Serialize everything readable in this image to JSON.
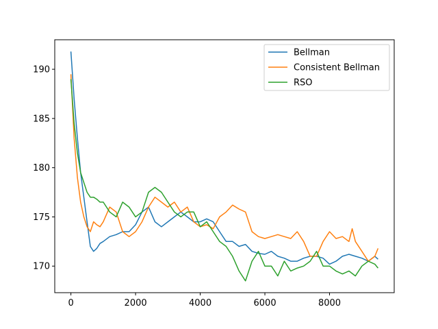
{
  "chart_data": {
    "type": "line",
    "title": "",
    "xlabel": "",
    "ylabel": "",
    "xlim": [
      -500,
      10000
    ],
    "ylim": [
      167.3,
      193.0
    ],
    "x_ticks": [
      {
        "value": 0,
        "label": "0"
      },
      {
        "value": 2000,
        "label": "2000"
      },
      {
        "value": 4000,
        "label": "4000"
      },
      {
        "value": 6000,
        "label": "6000"
      },
      {
        "value": 8000,
        "label": "8000"
      }
    ],
    "y_ticks": [
      {
        "value": 170,
        "label": "170"
      },
      {
        "value": 175,
        "label": "175"
      },
      {
        "value": 180,
        "label": "180"
      },
      {
        "value": 185,
        "label": "185"
      },
      {
        "value": 190,
        "label": "190"
      }
    ],
    "legend_position": "top-right",
    "series": [
      {
        "name": "Bellman",
        "color": "#1f77b4",
        "x": [
          0,
          100,
          200,
          300,
          400,
          500,
          600,
          700,
          800,
          900,
          1000,
          1200,
          1400,
          1600,
          1800,
          2000,
          2200,
          2400,
          2600,
          2800,
          3000,
          3200,
          3400,
          3600,
          3800,
          4000,
          4200,
          4400,
          4600,
          4800,
          5000,
          5200,
          5400,
          5600,
          5800,
          6000,
          6200,
          6400,
          6600,
          6800,
          7000,
          7200,
          7400,
          7600,
          7800,
          8000,
          8200,
          8400,
          8600,
          8800,
          9000,
          9200,
          9400,
          9500
        ],
        "y": [
          191.8,
          187.0,
          183.0,
          179.5,
          177.0,
          174.5,
          172.0,
          171.5,
          171.8,
          172.3,
          172.5,
          173.0,
          173.2,
          173.5,
          173.5,
          174.2,
          175.5,
          176.0,
          174.5,
          174.0,
          174.5,
          175.0,
          175.5,
          175.0,
          174.5,
          174.5,
          174.8,
          174.5,
          173.5,
          172.5,
          172.5,
          172.0,
          172.2,
          171.5,
          171.3,
          171.2,
          171.5,
          171.0,
          170.8,
          170.5,
          170.5,
          170.8,
          171.0,
          171.0,
          170.8,
          170.2,
          170.5,
          171.0,
          171.2,
          171.0,
          170.8,
          170.5,
          171.0,
          170.7
        ]
      },
      {
        "name": "Consistent Bellman",
        "color": "#ff7f0e",
        "x": [
          0,
          100,
          200,
          300,
          400,
          500,
          600,
          700,
          800,
          900,
          1000,
          1200,
          1400,
          1600,
          1800,
          2000,
          2200,
          2400,
          2600,
          2800,
          3000,
          3200,
          3400,
          3600,
          3800,
          4000,
          4200,
          4400,
          4600,
          4800,
          5000,
          5200,
          5400,
          5600,
          5800,
          6000,
          6200,
          6400,
          6600,
          6800,
          7000,
          7200,
          7400,
          7600,
          7800,
          8000,
          8200,
          8400,
          8600,
          8700,
          8800,
          9000,
          9200,
          9400,
          9500
        ],
        "y": [
          189.5,
          183.0,
          179.0,
          176.5,
          175.0,
          174.0,
          173.5,
          174.5,
          174.2,
          174.0,
          174.5,
          176.0,
          175.5,
          173.5,
          173.0,
          173.5,
          174.5,
          176.0,
          177.0,
          176.5,
          176.0,
          176.5,
          175.5,
          176.0,
          174.5,
          174.0,
          174.2,
          173.8,
          175.0,
          175.5,
          176.2,
          175.8,
          175.5,
          173.5,
          173.0,
          172.8,
          173.0,
          173.2,
          173.0,
          172.8,
          173.5,
          172.5,
          171.0,
          171.0,
          172.5,
          173.5,
          172.8,
          173.0,
          172.5,
          173.8,
          172.5,
          171.5,
          170.5,
          171.0,
          171.8
        ]
      },
      {
        "name": "RSO",
        "color": "#2ca02c",
        "x": [
          0,
          100,
          200,
          300,
          400,
          500,
          600,
          700,
          800,
          900,
          1000,
          1200,
          1400,
          1600,
          1800,
          2000,
          2200,
          2400,
          2600,
          2800,
          3000,
          3200,
          3400,
          3600,
          3800,
          4000,
          4200,
          4400,
          4600,
          4800,
          5000,
          5200,
          5400,
          5600,
          5800,
          6000,
          6200,
          6400,
          6600,
          6800,
          7000,
          7200,
          7400,
          7600,
          7800,
          8000,
          8200,
          8400,
          8600,
          8800,
          9000,
          9200,
          9400,
          9500
        ],
        "y": [
          189.0,
          184.5,
          181.5,
          179.5,
          178.5,
          177.5,
          177.0,
          177.0,
          176.8,
          176.5,
          176.5,
          175.5,
          175.0,
          176.5,
          176.0,
          175.0,
          175.5,
          177.5,
          178.0,
          177.5,
          176.5,
          175.5,
          175.0,
          175.5,
          175.5,
          174.0,
          174.5,
          173.5,
          172.5,
          172.0,
          171.0,
          169.5,
          168.5,
          170.5,
          171.5,
          170.0,
          170.0,
          169.0,
          170.5,
          169.5,
          169.8,
          170.0,
          170.5,
          171.5,
          170.0,
          170.0,
          169.5,
          169.2,
          169.5,
          169.0,
          170.0,
          170.5,
          170.2,
          169.8
        ]
      }
    ]
  }
}
